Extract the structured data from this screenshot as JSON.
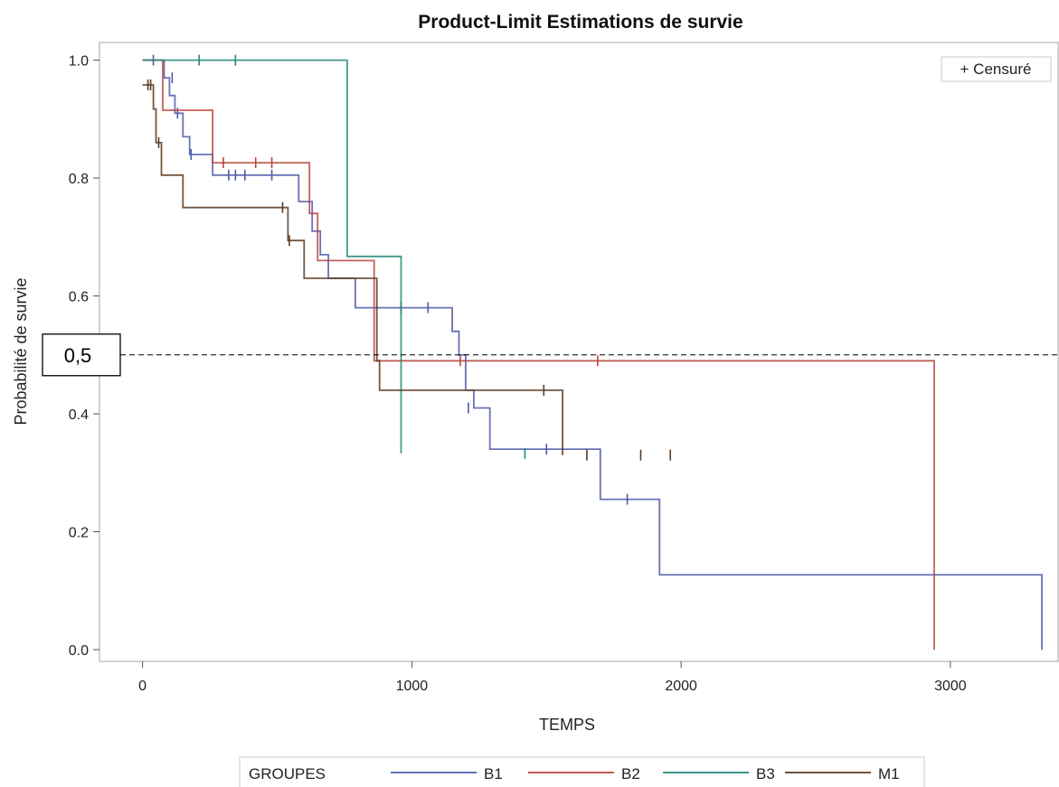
{
  "chart_data": {
    "type": "line",
    "step": true,
    "title": "Product-Limit Estimations de survie",
    "xlabel": "TEMPS",
    "ylabel": "Probabilité de survie",
    "xlim": [
      -160,
      3400
    ],
    "ylim": [
      -0.02,
      1.03
    ],
    "xticks": [
      0,
      1000,
      2000,
      3000
    ],
    "xtick_labels": [
      "0",
      "1000",
      "2000",
      "3000"
    ],
    "yticks": [
      0.0,
      0.2,
      0.4,
      0.6,
      0.8,
      1.0
    ],
    "ytick_labels": [
      "0.0",
      "0.2",
      "0.4",
      "0.6",
      "0.8",
      "1.0"
    ],
    "grid": false,
    "censor_legend": "+ Censuré",
    "legend": {
      "title": "GROUPES",
      "placement": "bottom"
    },
    "reference_line": {
      "y": 0.5,
      "label": "0,5",
      "style": "dashed"
    },
    "series": [
      {
        "name": "B1",
        "color": "#4d5ba8",
        "steps": [
          [
            0,
            1.0
          ],
          [
            80,
            0.97
          ],
          [
            100,
            0.94
          ],
          [
            120,
            0.91
          ],
          [
            150,
            0.87
          ],
          [
            175,
            0.84
          ],
          [
            260,
            0.805
          ],
          [
            580,
            0.76
          ],
          [
            630,
            0.71
          ],
          [
            660,
            0.67
          ],
          [
            690,
            0.63
          ],
          [
            790,
            0.58
          ],
          [
            1150,
            0.54
          ],
          [
            1175,
            0.5
          ],
          [
            1200,
            0.44
          ],
          [
            1230,
            0.41
          ],
          [
            1290,
            0.34
          ],
          [
            1700,
            0.255
          ],
          [
            1920,
            0.127
          ],
          [
            3340,
            0.0
          ]
        ],
        "censored": [
          [
            40,
            1.0
          ],
          [
            110,
            0.97
          ],
          [
            130,
            0.91
          ],
          [
            180,
            0.84
          ],
          [
            320,
            0.805
          ],
          [
            345,
            0.805
          ],
          [
            380,
            0.805
          ],
          [
            480,
            0.805
          ],
          [
            960,
            0.58
          ],
          [
            1060,
            0.58
          ],
          [
            1210,
            0.41
          ],
          [
            1500,
            0.34
          ],
          [
            1800,
            0.255
          ]
        ]
      },
      {
        "name": "B2",
        "color": "#b8453e",
        "steps": [
          [
            0,
            1.0
          ],
          [
            75,
            0.915
          ],
          [
            260,
            0.826
          ],
          [
            620,
            0.74
          ],
          [
            650,
            0.66
          ],
          [
            860,
            0.49
          ],
          [
            2940,
            0.0
          ]
        ],
        "censored": [
          [
            300,
            0.826
          ],
          [
            420,
            0.826
          ],
          [
            480,
            0.826
          ],
          [
            1180,
            0.49
          ],
          [
            1690,
            0.49
          ]
        ]
      },
      {
        "name": "B3",
        "color": "#1f8a76",
        "steps": [
          [
            0,
            1.0
          ],
          [
            760,
            0.667
          ],
          [
            960,
            0.333
          ]
        ],
        "censored": [
          [
            210,
            1.0
          ],
          [
            345,
            1.0
          ],
          [
            1420,
            0.333
          ]
        ]
      },
      {
        "name": "M1",
        "color": "#5c3a1f",
        "steps": [
          [
            0,
            0.958
          ],
          [
            40,
            0.917
          ],
          [
            50,
            0.86
          ],
          [
            70,
            0.805
          ],
          [
            150,
            0.75
          ],
          [
            540,
            0.694
          ],
          [
            600,
            0.63
          ],
          [
            870,
            0.49
          ],
          [
            880,
            0.44
          ],
          [
            1560,
            0.33
          ]
        ],
        "censored": [
          [
            20,
            0.958
          ],
          [
            30,
            0.958
          ],
          [
            60,
            0.86
          ],
          [
            520,
            0.75
          ],
          [
            545,
            0.694
          ],
          [
            1490,
            0.44
          ],
          [
            1650,
            0.33
          ],
          [
            1850,
            0.33
          ],
          [
            1960,
            0.33
          ]
        ]
      }
    ]
  }
}
